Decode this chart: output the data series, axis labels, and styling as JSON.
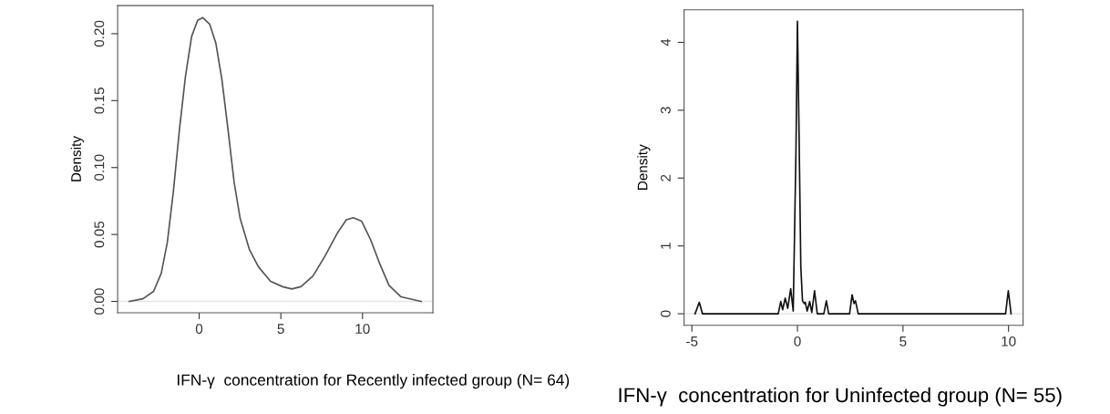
{
  "chart_data": [
    {
      "type": "line",
      "xlabel": "IFN-γ  concentration for Recently infected group (N= 64)",
      "ylabel": "Density",
      "series": [
        {
          "color": "#555555",
          "x": [
            -4.28,
            -3.44,
            -2.79,
            -2.32,
            -1.95,
            -1.58,
            -1.21,
            -0.84,
            -0.46,
            -0.09,
            0.22,
            0.65,
            1.02,
            1.39,
            1.77,
            2.14,
            2.51,
            3.07,
            3.62,
            4.37,
            5.11,
            5.67,
            6.23,
            6.97,
            7.71,
            8.46,
            9.01,
            9.44,
            9.94,
            10.5,
            11.06,
            11.62,
            12.36,
            13.6
          ],
          "values": [
            0,
            0.002,
            0.0075,
            0.021,
            0.044,
            0.082,
            0.128,
            0.168,
            0.198,
            0.21,
            0.212,
            0.207,
            0.193,
            0.166,
            0.128,
            0.089,
            0.062,
            0.039,
            0.026,
            0.015,
            0.011,
            0.0093,
            0.011,
            0.019,
            0.034,
            0.051,
            0.061,
            0.0625,
            0.06,
            0.046,
            0.028,
            0.012,
            0.0034,
            0
          ]
        }
      ],
      "xlim": [
        -4.99,
        14.31
      ],
      "ylim": [
        -0.0085,
        0.221
      ],
      "xticks": [
        0,
        5,
        10
      ],
      "yticks": [
        {
          "value": 0,
          "label": "0.00"
        },
        {
          "value": 0.05,
          "label": "0.05"
        },
        {
          "value": 0.1,
          "label": "0.10"
        },
        {
          "value": 0.15,
          "label": "0.15"
        },
        {
          "value": 0.2,
          "label": "0.20"
        }
      ],
      "ref_lines": [
        {
          "axis": "y",
          "value": 0,
          "color": "#e6e6e6"
        }
      ]
    },
    {
      "type": "line",
      "xlabel": "IFN-γ  concentration for Uninfected group (N= 55)",
      "ylabel": "Density",
      "series": [
        {
          "color": "#111111",
          "x": [
            -4.85,
            -4.65,
            -4.5,
            -0.91,
            -0.79,
            -0.7,
            -0.58,
            -0.46,
            -0.32,
            -0.2,
            -0.07,
            0.0,
            0.07,
            0.16,
            0.24,
            0.32,
            0.37,
            0.46,
            0.58,
            0.68,
            0.81,
            0.94,
            1.25,
            1.37,
            1.48,
            2.47,
            2.59,
            2.68,
            2.75,
            2.88,
            9.86,
            9.99,
            10.12
          ],
          "values": [
            0,
            0.17,
            0,
            0,
            0.18,
            0.06,
            0.23,
            0.08,
            0.37,
            0.04,
            2.4,
            4.31,
            2.8,
            0.69,
            0.19,
            0.15,
            0.17,
            0.04,
            0.18,
            0.02,
            0.34,
            0,
            0,
            0.19,
            0,
            0,
            0.28,
            0.15,
            0.19,
            0,
            0,
            0.34,
            0
          ]
        }
      ],
      "xlim": [
        -5.37,
        10.69
      ],
      "ylim": [
        -0.17,
        4.48
      ],
      "xticks": [
        -5,
        0,
        5,
        10
      ],
      "yticks": [
        0,
        1,
        2,
        3,
        4
      ],
      "ref_lines": [
        {
          "axis": "y",
          "value": 0,
          "color": "#e6e6e6"
        }
      ]
    }
  ]
}
